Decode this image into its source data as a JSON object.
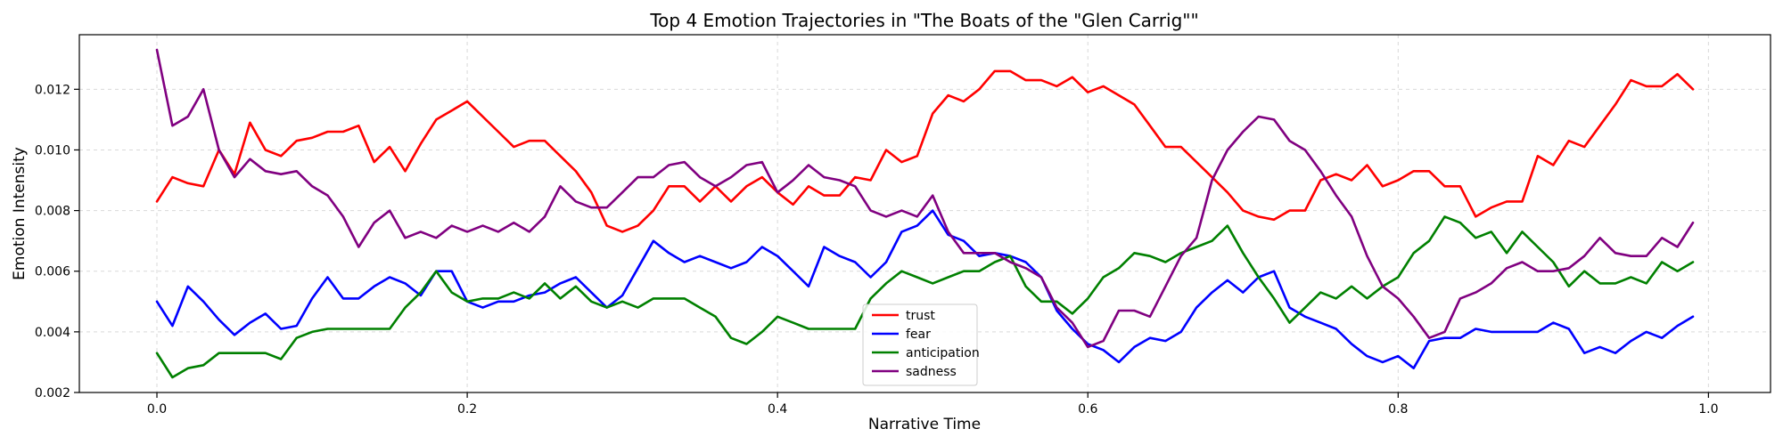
{
  "chart_data": {
    "type": "line",
    "title": "Top 4 Emotion Trajectories in \"The Boats of the \"Glen Carrig\"\"",
    "xlabel": "Narrative Time",
    "ylabel": "Emotion Intensity",
    "xlim": [
      -0.05,
      1.04
    ],
    "ylim": [
      0.002,
      0.0138
    ],
    "x_ticks": [
      {
        "value": 0.0,
        "label": "0.0"
      },
      {
        "value": 0.2,
        "label": "0.2"
      },
      {
        "value": 0.4,
        "label": "0.4"
      },
      {
        "value": 0.6,
        "label": "0.6"
      },
      {
        "value": 0.8,
        "label": "0.8"
      },
      {
        "value": 1.0,
        "label": "1.0"
      }
    ],
    "y_ticks": [
      {
        "value": 0.002,
        "label": "0.002"
      },
      {
        "value": 0.004,
        "label": "0.004"
      },
      {
        "value": 0.006,
        "label": "0.006"
      },
      {
        "value": 0.008,
        "label": "0.008"
      },
      {
        "value": 0.01,
        "label": "0.010"
      },
      {
        "value": 0.012,
        "label": "0.012"
      }
    ],
    "grid": true,
    "legend_position": "lower-center",
    "x": [
      0.0,
      0.01,
      0.02,
      0.03,
      0.04,
      0.05,
      0.06,
      0.07,
      0.08,
      0.09,
      0.1,
      0.11,
      0.12,
      0.13,
      0.14,
      0.15,
      0.16,
      0.17,
      0.18,
      0.19,
      0.2,
      0.21,
      0.22,
      0.23,
      0.24,
      0.25,
      0.26,
      0.27,
      0.28,
      0.29,
      0.3,
      0.31,
      0.32,
      0.33,
      0.34,
      0.35,
      0.36,
      0.37,
      0.38,
      0.39,
      0.4,
      0.41,
      0.42,
      0.43,
      0.44,
      0.45,
      0.46,
      0.47,
      0.48,
      0.49,
      0.5,
      0.51,
      0.52,
      0.53,
      0.54,
      0.55,
      0.56,
      0.57,
      0.58,
      0.59,
      0.6,
      0.61,
      0.62,
      0.63,
      0.64,
      0.65,
      0.66,
      0.67,
      0.68,
      0.69,
      0.7,
      0.71,
      0.72,
      0.73,
      0.74,
      0.75,
      0.76,
      0.77,
      0.78,
      0.79,
      0.8,
      0.81,
      0.82,
      0.83,
      0.84,
      0.85,
      0.86,
      0.87,
      0.88,
      0.89,
      0.9,
      0.91,
      0.92,
      0.93,
      0.94,
      0.95,
      0.96,
      0.97,
      0.98,
      0.99
    ],
    "series": [
      {
        "name": "trust",
        "color": "#ff0000",
        "values": [
          0.0083,
          0.0091,
          0.0089,
          0.0088,
          0.01,
          0.0092,
          0.0109,
          0.01,
          0.0098,
          0.0103,
          0.0104,
          0.0106,
          0.0106,
          0.0108,
          0.0096,
          0.0101,
          0.0093,
          0.0102,
          0.011,
          0.0113,
          0.0116,
          0.0111,
          0.0106,
          0.0101,
          0.0103,
          0.0103,
          0.0098,
          0.0093,
          0.0086,
          0.0075,
          0.0073,
          0.0075,
          0.008,
          0.0088,
          0.0088,
          0.0083,
          0.0088,
          0.0083,
          0.0088,
          0.0091,
          0.0086,
          0.0082,
          0.0088,
          0.0085,
          0.0085,
          0.0091,
          0.009,
          0.01,
          0.0096,
          0.0098,
          0.0112,
          0.0118,
          0.0116,
          0.012,
          0.0126,
          0.0126,
          0.0123,
          0.0123,
          0.0121,
          0.0124,
          0.0119,
          0.0121,
          0.0118,
          0.0115,
          0.0108,
          0.0101,
          0.0101,
          0.0096,
          0.0091,
          0.0086,
          0.008,
          0.0078,
          0.0077,
          0.008,
          0.008,
          0.009,
          0.0092,
          0.009,
          0.0095,
          0.0088,
          0.009,
          0.0093,
          0.0093,
          0.0088,
          0.0088,
          0.0078,
          0.0081,
          0.0083,
          0.0083,
          0.0098,
          0.0095,
          0.0103,
          0.0101,
          0.0108,
          0.0115,
          0.0123,
          0.0121,
          0.0121,
          0.0125,
          0.012
        ]
      },
      {
        "name": "fear",
        "color": "#0000ff",
        "values": [
          0.005,
          0.0042,
          0.0055,
          0.005,
          0.0044,
          0.0039,
          0.0043,
          0.0046,
          0.0041,
          0.0042,
          0.0051,
          0.0058,
          0.0051,
          0.0051,
          0.0055,
          0.0058,
          0.0056,
          0.0052,
          0.006,
          0.006,
          0.005,
          0.0048,
          0.005,
          0.005,
          0.0052,
          0.0053,
          0.0056,
          0.0058,
          0.0053,
          0.0048,
          0.0052,
          0.0061,
          0.007,
          0.0066,
          0.0063,
          0.0065,
          0.0063,
          0.0061,
          0.0063,
          0.0068,
          0.0065,
          0.006,
          0.0055,
          0.0068,
          0.0065,
          0.0063,
          0.0058,
          0.0063,
          0.0073,
          0.0075,
          0.008,
          0.0072,
          0.007,
          0.0065,
          0.0066,
          0.0065,
          0.0063,
          0.0058,
          0.0047,
          0.0041,
          0.0036,
          0.0034,
          0.003,
          0.0035,
          0.0038,
          0.0037,
          0.004,
          0.0048,
          0.0053,
          0.0057,
          0.0053,
          0.0058,
          0.006,
          0.0048,
          0.0045,
          0.0043,
          0.0041,
          0.0036,
          0.0032,
          0.003,
          0.0032,
          0.0028,
          0.0037,
          0.0038,
          0.0038,
          0.0041,
          0.004,
          0.004,
          0.004,
          0.004,
          0.0043,
          0.0041,
          0.0033,
          0.0035,
          0.0033,
          0.0037,
          0.004,
          0.0038,
          0.0042,
          0.0045
        ]
      },
      {
        "name": "anticipation",
        "color": "#008000",
        "values": [
          0.0033,
          0.0025,
          0.0028,
          0.0029,
          0.0033,
          0.0033,
          0.0033,
          0.0033,
          0.0031,
          0.0038,
          0.004,
          0.0041,
          0.0041,
          0.0041,
          0.0041,
          0.0041,
          0.0048,
          0.0053,
          0.006,
          0.0053,
          0.005,
          0.0051,
          0.0051,
          0.0053,
          0.0051,
          0.0056,
          0.0051,
          0.0055,
          0.005,
          0.0048,
          0.005,
          0.0048,
          0.0051,
          0.0051,
          0.0051,
          0.0048,
          0.0045,
          0.0038,
          0.0036,
          0.004,
          0.0045,
          0.0043,
          0.0041,
          0.0041,
          0.0041,
          0.0041,
          0.0051,
          0.0056,
          0.006,
          0.0058,
          0.0056,
          0.0058,
          0.006,
          0.006,
          0.0063,
          0.0065,
          0.0055,
          0.005,
          0.005,
          0.0046,
          0.0051,
          0.0058,
          0.0061,
          0.0066,
          0.0065,
          0.0063,
          0.0066,
          0.0068,
          0.007,
          0.0075,
          0.0066,
          0.0058,
          0.0051,
          0.0043,
          0.0048,
          0.0053,
          0.0051,
          0.0055,
          0.0051,
          0.0055,
          0.0058,
          0.0066,
          0.007,
          0.0078,
          0.0076,
          0.0071,
          0.0073,
          0.0066,
          0.0073,
          0.0068,
          0.0063,
          0.0055,
          0.006,
          0.0056,
          0.0056,
          0.0058,
          0.0056,
          0.0063,
          0.006,
          0.0063
        ]
      },
      {
        "name": "sadness",
        "color": "#800080",
        "values": [
          0.0133,
          0.0108,
          0.0111,
          0.012,
          0.01,
          0.0091,
          0.0097,
          0.0093,
          0.0092,
          0.0093,
          0.0088,
          0.0085,
          0.0078,
          0.0068,
          0.0076,
          0.008,
          0.0071,
          0.0073,
          0.0071,
          0.0075,
          0.0073,
          0.0075,
          0.0073,
          0.0076,
          0.0073,
          0.0078,
          0.0088,
          0.0083,
          0.0081,
          0.0081,
          0.0086,
          0.0091,
          0.0091,
          0.0095,
          0.0096,
          0.0091,
          0.0088,
          0.0091,
          0.0095,
          0.0096,
          0.0086,
          0.009,
          0.0095,
          0.0091,
          0.009,
          0.0088,
          0.008,
          0.0078,
          0.008,
          0.0078,
          0.0085,
          0.0073,
          0.0066,
          0.0066,
          0.0066,
          0.0063,
          0.0061,
          0.0058,
          0.0048,
          0.0043,
          0.0035,
          0.0037,
          0.0047,
          0.0047,
          0.0045,
          0.0055,
          0.0065,
          0.0071,
          0.009,
          0.01,
          0.0106,
          0.0111,
          0.011,
          0.0103,
          0.01,
          0.0093,
          0.0085,
          0.0078,
          0.0065,
          0.0055,
          0.0051,
          0.0045,
          0.0038,
          0.004,
          0.0051,
          0.0053,
          0.0056,
          0.0061,
          0.0063,
          0.006,
          0.006,
          0.0061,
          0.0065,
          0.0071,
          0.0066,
          0.0065,
          0.0065,
          0.0071,
          0.0068,
          0.0076
        ]
      }
    ]
  }
}
